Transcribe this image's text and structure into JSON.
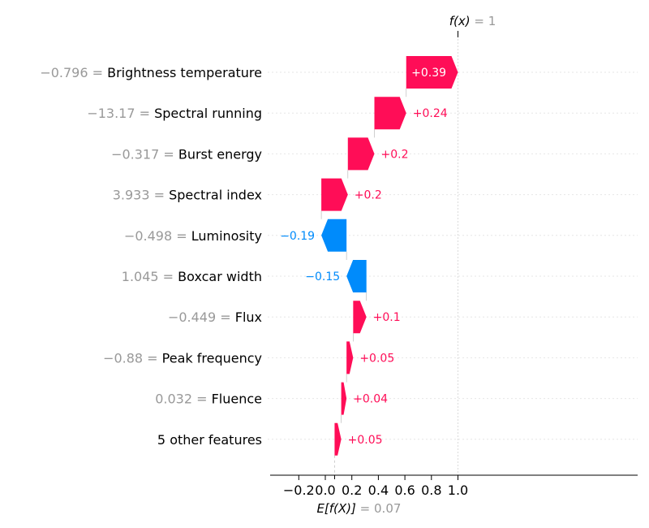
{
  "chart_data": {
    "type": "waterfall",
    "title": "",
    "base_value": 0.07,
    "output_value": 1,
    "base_label": "E[f(X)]",
    "base_value_text": "0.07",
    "output_label": "f(x)",
    "output_value_text": "1",
    "xlim": [
      -0.2,
      1.18
    ],
    "x_ticks": [
      -0.2,
      0.0,
      0.2,
      0.4,
      0.6,
      0.8,
      1.0
    ],
    "x_tick_labels": [
      "−0.2",
      "0.0",
      "0.2",
      "0.4",
      "0.6",
      "0.8",
      "1.0"
    ],
    "features": [
      {
        "value_text": "−0.796",
        "name": "Brightness temperature",
        "contribution": 0.39,
        "label": "+0.39"
      },
      {
        "value_text": "−13.17",
        "name": "Spectral running",
        "contribution": 0.24,
        "label": "+0.24"
      },
      {
        "value_text": "−0.317",
        "name": "Burst energy",
        "contribution": 0.2,
        "label": "+0.2"
      },
      {
        "value_text": "3.933",
        "name": "Spectral index",
        "contribution": 0.2,
        "label": "+0.2"
      },
      {
        "value_text": "−0.498",
        "name": "Luminosity",
        "contribution": -0.19,
        "label": "−0.19"
      },
      {
        "value_text": "1.045",
        "name": "Boxcar width",
        "contribution": -0.15,
        "label": "−0.15"
      },
      {
        "value_text": "−0.449",
        "name": "Flux",
        "contribution": 0.1,
        "label": "+0.1"
      },
      {
        "value_text": "−0.88",
        "name": "Peak frequency",
        "contribution": 0.05,
        "label": "+0.05"
      },
      {
        "value_text": "0.032",
        "name": "Fluence",
        "contribution": 0.04,
        "label": "+0.04"
      },
      {
        "value_text": "",
        "name": "5 other features",
        "contribution": 0.05,
        "label": "+0.05"
      }
    ],
    "colors": {
      "positive": "#ff0d57",
      "negative": "#008bfb",
      "label_on_bar": "#ffffff",
      "muted": "#999999",
      "grid": "#e6e6e6"
    }
  }
}
